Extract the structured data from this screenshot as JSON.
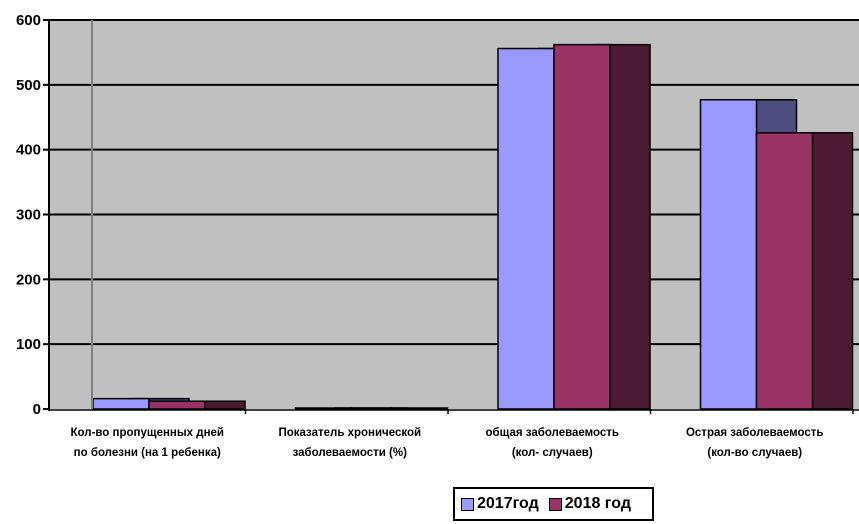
{
  "chart_data": {
    "type": "bar",
    "categories": [
      [
        "Кол-во пропущенных дней",
        "по болезни (на 1 ребенка)"
      ],
      [
        "Показатель хронической",
        "заболеваемости (%)"
      ],
      [
        "общая заболеваемость",
        "(кол- случаев)"
      ],
      [
        "Острая заболеваемость",
        "(кол-во случаев)"
      ]
    ],
    "series": [
      {
        "name": "2017год",
        "values": [
          16,
          1.5,
          556,
          477
        ],
        "color": "#9999ff"
      },
      {
        "name": "2018 год",
        "values": [
          12,
          1.5,
          562,
          426
        ],
        "color": "#993366"
      }
    ],
    "ylim": [
      0,
      600
    ],
    "yticks": [
      "0",
      "100",
      "200",
      "300",
      "400",
      "500",
      "600"
    ],
    "grid": true,
    "legend_position": "bottom",
    "plot_background": "#c0c0c0",
    "depth_effect": "3d",
    "shadow_colors": [
      "#4d4d80",
      "#4d1a33"
    ]
  }
}
